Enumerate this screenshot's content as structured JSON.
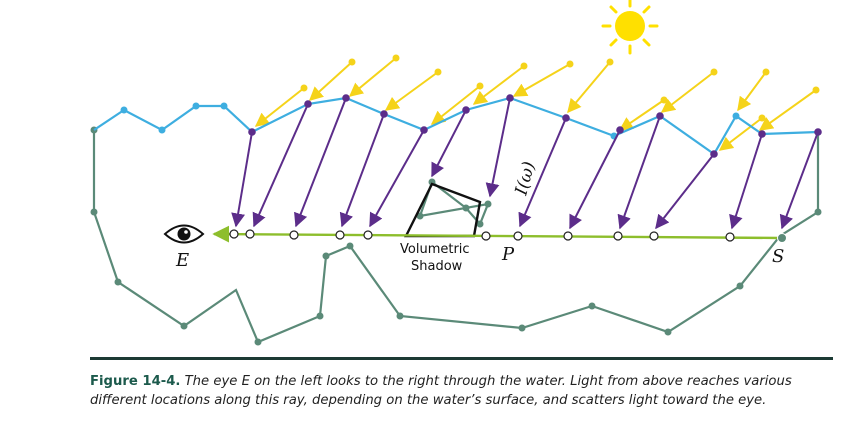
{
  "labels": {
    "eye": "E",
    "point": "P",
    "scatter": "S",
    "intensity": "I(ω)",
    "shadow_line1": "Volumetric",
    "shadow_line2": "Shadow"
  },
  "caption": {
    "figure_number": "Figure 14-4.",
    "text": "The eye E on the left looks to the right through the water. Light from above reaches various different locations along this ray, depending on the water’s surface, and scatters light toward the eye."
  },
  "colors": {
    "sun": "#ffe000",
    "light_ray": "#f5d31a",
    "water_surface": "#3eaee0",
    "refracted_ray": "#5c2d8a",
    "view_ray": "#8dbe2c",
    "terrain": "#5b8a78",
    "shadow_outline": "#111111",
    "caption_rule": "#1c3a34",
    "figure_number": "#1c5a4c"
  },
  "icons": [
    "eye-icon",
    "sun-icon"
  ]
}
